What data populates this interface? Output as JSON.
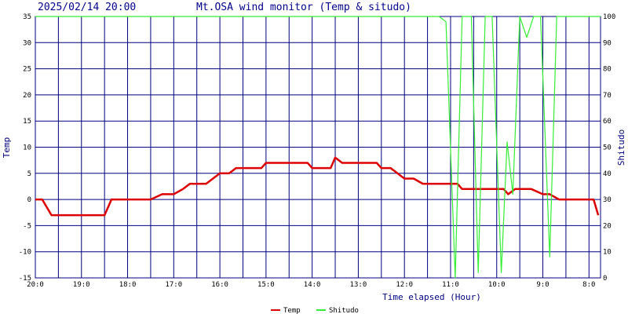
{
  "header": {
    "datetime": "2025/02/14 20:00",
    "title": "Mt.OSA wind monitor (Temp & situdo)"
  },
  "chart_data": {
    "type": "line",
    "xlabel": "Time elapsed (Hour)",
    "ylabel_left": "Temp",
    "ylabel_right": "Shitudo",
    "ylim_left": [
      -15,
      35
    ],
    "ylim_right": [
      0,
      100
    ],
    "y_ticks_left": [
      35,
      30,
      25,
      20,
      15,
      10,
      5,
      0,
      -5,
      -10,
      -15
    ],
    "y_ticks_right": [
      100,
      90,
      80,
      70,
      60,
      50,
      40,
      30,
      20,
      10,
      0
    ],
    "x_ticks": [
      {
        "h": 0,
        "label": "20:0"
      },
      {
        "h": 2,
        "label": "19:0"
      },
      {
        "h": 4,
        "label": "18:0"
      },
      {
        "h": 6,
        "label": "17:0"
      },
      {
        "h": 8,
        "label": "16:0"
      },
      {
        "h": 10,
        "label": "15:0"
      },
      {
        "h": 12,
        "label": "14:0"
      },
      {
        "h": 14,
        "label": "13:0"
      },
      {
        "h": 16,
        "label": "12:0"
      },
      {
        "h": 18,
        "label": "11:0"
      },
      {
        "h": 20,
        "label": "10:0"
      },
      {
        "h": 22,
        "label": "9:0"
      },
      {
        "h": 24,
        "label": "8:0"
      }
    ],
    "x_range_hours": [
      0,
      24.5
    ],
    "grid": true,
    "legend_position": "bottom",
    "series": [
      {
        "name": "Temp",
        "axis": "left",
        "color": "#dd0000",
        "points": [
          [
            0,
            0
          ],
          [
            0.3,
            0
          ],
          [
            0.7,
            -3
          ],
          [
            1,
            -3
          ],
          [
            2,
            -3
          ],
          [
            3,
            -3
          ],
          [
            3,
            -3
          ],
          [
            3.3,
            0
          ],
          [
            4,
            0
          ],
          [
            5,
            0
          ],
          [
            5,
            0
          ],
          [
            5.5,
            1
          ],
          [
            6,
            1
          ],
          [
            6.4,
            2
          ],
          [
            6.7,
            3
          ],
          [
            7,
            3
          ],
          [
            7.4,
            3
          ],
          [
            7.7,
            4
          ],
          [
            8,
            5
          ],
          [
            8.4,
            5
          ],
          [
            8.7,
            6
          ],
          [
            9,
            6
          ],
          [
            9.5,
            6
          ],
          [
            9.8,
            6
          ],
          [
            10,
            7
          ],
          [
            10.5,
            7
          ],
          [
            11,
            7
          ],
          [
            11.5,
            7
          ],
          [
            11.8,
            7
          ],
          [
            12,
            6
          ],
          [
            12.5,
            6
          ],
          [
            12.8,
            6
          ],
          [
            13,
            8
          ],
          [
            13.3,
            7
          ],
          [
            13.8,
            7
          ],
          [
            14,
            7
          ],
          [
            14.5,
            7
          ],
          [
            14.8,
            7
          ],
          [
            15,
            6
          ],
          [
            15.4,
            6
          ],
          [
            15.7,
            5
          ],
          [
            16,
            4
          ],
          [
            16.4,
            4
          ],
          [
            16.8,
            3
          ],
          [
            17,
            3
          ],
          [
            17.5,
            3
          ],
          [
            18,
            3
          ],
          [
            18.3,
            3
          ],
          [
            18.5,
            2
          ],
          [
            19,
            2
          ],
          [
            19.5,
            2
          ],
          [
            20,
            2
          ],
          [
            20.3,
            2
          ],
          [
            20.5,
            1
          ],
          [
            20.8,
            2
          ],
          [
            21,
            2
          ],
          [
            21.5,
            2
          ],
          [
            22,
            1
          ],
          [
            22.3,
            1
          ],
          [
            22.7,
            0
          ],
          [
            23,
            0
          ],
          [
            23.5,
            0
          ],
          [
            24,
            0
          ],
          [
            24.2,
            0
          ],
          [
            24.4,
            -3
          ]
        ]
      },
      {
        "name": "Shitudo",
        "axis": "right",
        "color": "#33ee33",
        "points": [
          [
            0,
            100
          ],
          [
            5,
            100
          ],
          [
            10,
            100
          ],
          [
            15,
            100
          ],
          [
            16,
            100
          ],
          [
            17,
            100
          ],
          [
            17.5,
            100
          ],
          [
            17.8,
            98
          ],
          [
            18.2,
            0
          ],
          [
            18.5,
            100
          ],
          [
            18.9,
            100
          ],
          [
            19.2,
            2
          ],
          [
            19.5,
            100
          ],
          [
            19.8,
            100
          ],
          [
            20.2,
            2
          ],
          [
            20.45,
            52
          ],
          [
            20.7,
            32
          ],
          [
            21,
            100
          ],
          [
            21.3,
            92
          ],
          [
            21.6,
            100
          ],
          [
            21.9,
            100
          ],
          [
            22.3,
            8
          ],
          [
            22.6,
            100
          ],
          [
            23,
            100
          ],
          [
            24,
            100
          ],
          [
            24.5,
            100
          ]
        ]
      }
    ]
  }
}
